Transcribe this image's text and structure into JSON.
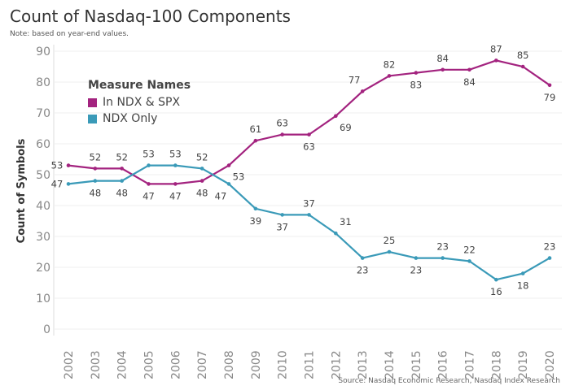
{
  "chart_data": {
    "type": "line",
    "title": "Count of Nasdaq-100 Components",
    "subtitle": "Note: based on year-end values.",
    "source": "Source: Nasdaq Economic Research, Nasdaq Index Research",
    "xlabel": "",
    "ylabel": "Count of Symbols",
    "ylim": [
      0,
      90
    ],
    "yticks": [
      0,
      10,
      20,
      30,
      40,
      50,
      60,
      70,
      80,
      90
    ],
    "grid": true,
    "legend": {
      "title": "Measure Names",
      "placement": "top-left"
    },
    "x": [
      "2002",
      "2003",
      "2004",
      "2005",
      "2006",
      "2007",
      "2008",
      "2009",
      "2010",
      "2011",
      "2012",
      "2013",
      "2014",
      "2015",
      "2016",
      "2017",
      "2018",
      "2019",
      "2020"
    ],
    "series": [
      {
        "name": "In NDX & SPX",
        "color": "#a3237f",
        "values": [
          53,
          52,
          52,
          47,
          47,
          48,
          53,
          61,
          63,
          63,
          69,
          77,
          82,
          83,
          84,
          84,
          87,
          85,
          79
        ]
      },
      {
        "name": "NDX Only",
        "color": "#3a9ab8",
        "values": [
          47,
          48,
          48,
          53,
          53,
          52,
          47,
          39,
          37,
          37,
          31,
          23,
          25,
          23,
          23,
          22,
          16,
          18,
          23
        ]
      }
    ]
  }
}
